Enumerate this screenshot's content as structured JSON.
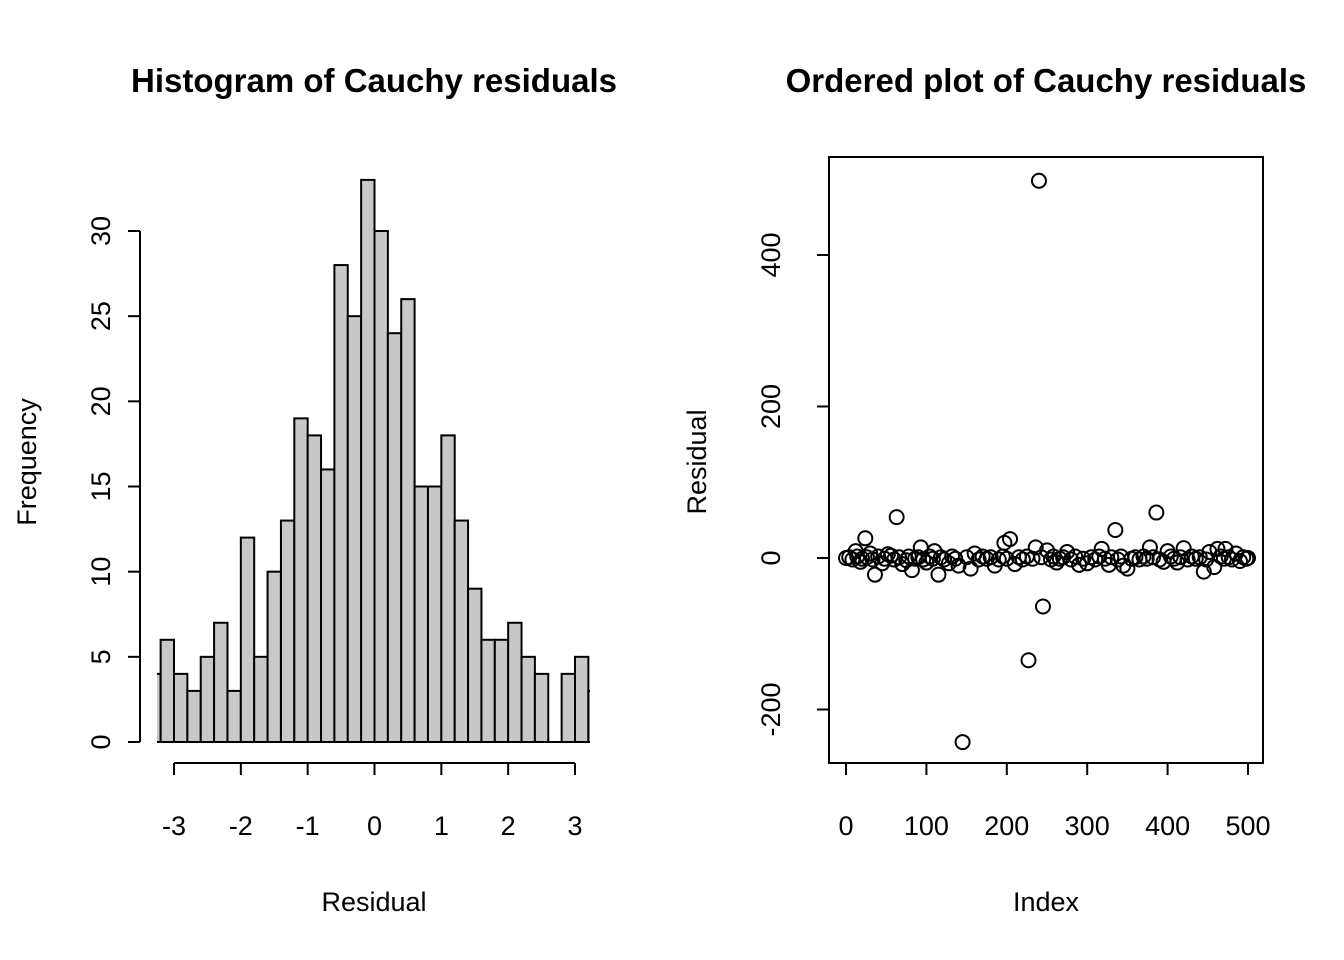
{
  "chart_data": [
    {
      "type": "bar",
      "title": "Histogram of Cauchy residuals",
      "xlabel": "Residual",
      "ylabel": "Frequency",
      "xlim": [
        -3.25,
        3.23
      ],
      "ylim": [
        0,
        33
      ],
      "xticks": [
        -3,
        -2,
        -1,
        0,
        1,
        2,
        3
      ],
      "xtick_labels": [
        "-3",
        "-2",
        "-1",
        "0",
        "1",
        "2",
        "3"
      ],
      "yticks": [
        0,
        5,
        10,
        15,
        20,
        25,
        30
      ],
      "ytick_labels": [
        "0",
        "5",
        "10",
        "15",
        "20",
        "25",
        "30"
      ],
      "bin_width": 0.2,
      "bin_starts": [
        -3.4,
        -3.2,
        -3.0,
        -2.8,
        -2.6,
        -2.4,
        -2.2,
        -2.0,
        -1.8,
        -1.6,
        -1.4,
        -1.2,
        -1.0,
        -0.8,
        -0.6,
        -0.4,
        -0.2,
        0.0,
        0.2,
        0.4,
        0.6,
        0.8,
        1.0,
        1.2,
        1.4,
        1.6,
        1.8,
        2.0,
        2.2,
        2.4,
        2.6,
        2.8,
        3.0,
        3.2
      ],
      "values": [
        4,
        6,
        4,
        3,
        5,
        7,
        3,
        12,
        5,
        10,
        13,
        19,
        18,
        16,
        28,
        25,
        33,
        30,
        24,
        26,
        15,
        15,
        18,
        13,
        9,
        6,
        6,
        7,
        5,
        4,
        0,
        4,
        5,
        3
      ],
      "bar_color": "#c8c8c8",
      "grid": false
    },
    {
      "type": "scatter",
      "title": "Ordered plot of Cauchy residuals",
      "xlabel": "Index",
      "ylabel": "Residual",
      "xlim": [
        -20,
        520
      ],
      "ylim": [
        -270,
        530
      ],
      "xticks": [
        0,
        100,
        200,
        300,
        400,
        500
      ],
      "xtick_labels": [
        "0",
        "100",
        "200",
        "300",
        "400",
        "500"
      ],
      "yticks": [
        -200,
        0,
        200,
        400
      ],
      "ytick_labels": [
        "-200",
        "0",
        "200",
        "400"
      ],
      "grid": false,
      "points": [
        [
          240,
          498
        ],
        [
          145,
          -243
        ],
        [
          227,
          -135
        ],
        [
          245,
          -64
        ],
        [
          63,
          54
        ],
        [
          386,
          60
        ],
        [
          335,
          37
        ],
        [
          204,
          25
        ],
        [
          24,
          26
        ],
        [
          36,
          -22
        ],
        [
          115,
          -22
        ],
        [
          197,
          20
        ],
        [
          12,
          9
        ],
        [
          18,
          -5
        ],
        [
          30,
          6
        ],
        [
          45,
          -7
        ],
        [
          52,
          5
        ],
        [
          70,
          -8
        ],
        [
          82,
          -16
        ],
        [
          93,
          14
        ],
        [
          100,
          -6
        ],
        [
          110,
          9
        ],
        [
          128,
          -7
        ],
        [
          140,
          -10
        ],
        [
          155,
          -14
        ],
        [
          160,
          6
        ],
        [
          185,
          -10
        ],
        [
          210,
          -8
        ],
        [
          236,
          14
        ],
        [
          250,
          10
        ],
        [
          262,
          -6
        ],
        [
          275,
          8
        ],
        [
          290,
          -9
        ],
        [
          300,
          -7
        ],
        [
          318,
          12
        ],
        [
          327,
          -9
        ],
        [
          345,
          -10
        ],
        [
          350,
          -14
        ],
        [
          378,
          14
        ],
        [
          395,
          -5
        ],
        [
          400,
          9
        ],
        [
          412,
          -6
        ],
        [
          420,
          13
        ],
        [
          445,
          -18
        ],
        [
          452,
          8
        ],
        [
          458,
          -12
        ],
        [
          462,
          12
        ],
        [
          472,
          12
        ],
        [
          485,
          6
        ],
        [
          490,
          -4
        ],
        [
          0,
          0
        ],
        [
          4,
          1
        ],
        [
          8,
          -2
        ],
        [
          14,
          2
        ],
        [
          20,
          -1
        ],
        [
          26,
          1
        ],
        [
          33,
          -2
        ],
        [
          40,
          2
        ],
        [
          48,
          -1
        ],
        [
          56,
          3
        ],
        [
          60,
          -2
        ],
        [
          66,
          1
        ],
        [
          75,
          -3
        ],
        [
          78,
          2
        ],
        [
          86,
          -1
        ],
        [
          90,
          1
        ],
        [
          96,
          -2
        ],
        [
          104,
          2
        ],
        [
          108,
          -1
        ],
        [
          118,
          1
        ],
        [
          122,
          -2
        ],
        [
          132,
          2
        ],
        [
          136,
          -1
        ],
        [
          150,
          1
        ],
        [
          165,
          -2
        ],
        [
          170,
          2
        ],
        [
          175,
          -1
        ],
        [
          180,
          1
        ],
        [
          190,
          -2
        ],
        [
          195,
          2
        ],
        [
          200,
          -1
        ],
        [
          215,
          1
        ],
        [
          220,
          -2
        ],
        [
          225,
          2
        ],
        [
          232,
          -1
        ],
        [
          243,
          1
        ],
        [
          255,
          -2
        ],
        [
          258,
          2
        ],
        [
          266,
          -1
        ],
        [
          270,
          1
        ],
        [
          280,
          -2
        ],
        [
          285,
          2
        ],
        [
          295,
          -1
        ],
        [
          305,
          1
        ],
        [
          310,
          -2
        ],
        [
          315,
          2
        ],
        [
          322,
          -1
        ],
        [
          330,
          1
        ],
        [
          338,
          -2
        ],
        [
          342,
          2
        ],
        [
          355,
          -1
        ],
        [
          360,
          1
        ],
        [
          365,
          -2
        ],
        [
          370,
          2
        ],
        [
          374,
          -1
        ],
        [
          382,
          1
        ],
        [
          390,
          -2
        ],
        [
          404,
          2
        ],
        [
          408,
          -1
        ],
        [
          416,
          1
        ],
        [
          425,
          -2
        ],
        [
          430,
          2
        ],
        [
          435,
          -1
        ],
        [
          440,
          1
        ],
        [
          448,
          -2
        ],
        [
          466,
          2
        ],
        [
          470,
          -1
        ],
        [
          476,
          1
        ],
        [
          480,
          -2
        ],
        [
          494,
          1
        ],
        [
          498,
          -1
        ],
        [
          500,
          0
        ]
      ]
    }
  ]
}
